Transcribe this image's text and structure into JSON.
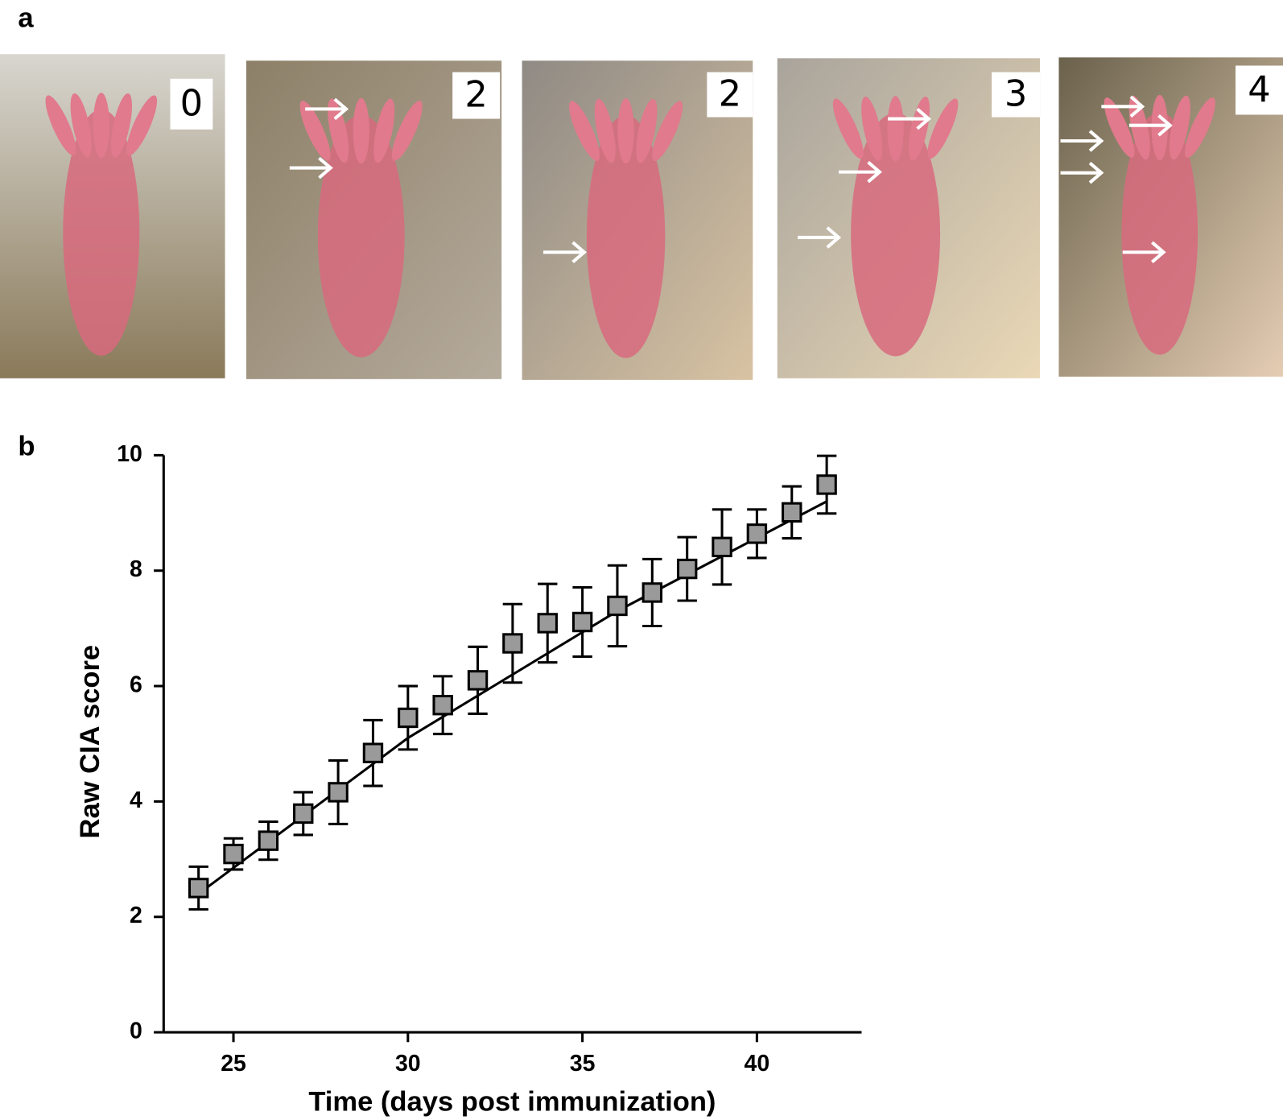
{
  "panel_a": {
    "label": "a",
    "photos": [
      {
        "score": "0"
      },
      {
        "score": "2"
      },
      {
        "score": "2"
      },
      {
        "score": "3"
      },
      {
        "score": "4"
      }
    ]
  },
  "chart_data": {
    "type": "scatter",
    "panel_label": "b",
    "x_label": "Time (days post immunization)",
    "y_label": "Raw CIA score",
    "x": [
      24,
      25,
      26,
      27,
      28,
      29,
      30,
      31,
      32,
      33,
      34,
      35,
      36,
      37,
      38,
      39,
      40,
      41,
      42
    ],
    "series": [
      {
        "color": "#9a9a9a",
        "values": [
          2.5,
          3.09,
          3.32,
          3.79,
          4.16,
          4.84,
          5.45,
          5.67,
          6.1,
          6.74,
          7.09,
          7.11,
          7.39,
          7.62,
          8.03,
          8.41,
          8.64,
          9.01,
          9.49
        ],
        "errors": [
          0.37,
          0.27,
          0.33,
          0.37,
          0.55,
          0.57,
          0.55,
          0.5,
          0.58,
          0.68,
          0.68,
          0.6,
          0.7,
          0.58,
          0.55,
          0.65,
          0.42,
          0.45,
          0.5
        ]
      }
    ],
    "fit": {
      "x": [
        24,
        30,
        36,
        42
      ],
      "values": [
        2.4,
        5.1,
        7.3,
        9.2
      ]
    },
    "xlim": [
      23,
      43
    ],
    "ylim": [
      0,
      10
    ],
    "xticks": [
      25,
      30,
      35,
      40
    ],
    "yticks": [
      0,
      2,
      4,
      6,
      8,
      10
    ]
  }
}
